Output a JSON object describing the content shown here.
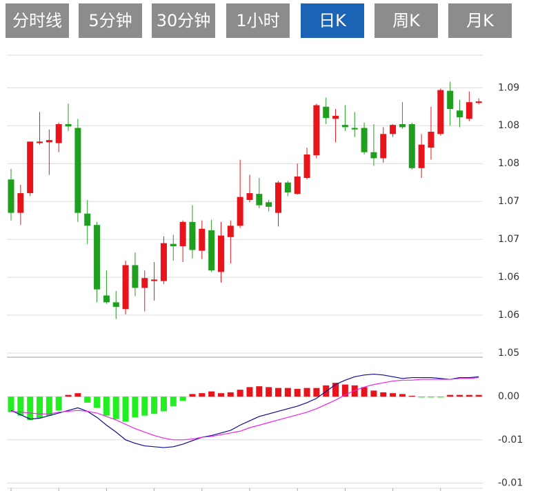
{
  "tabs": {
    "items": [
      "分时线",
      "5分钟",
      "30分钟",
      "1小时",
      "日K",
      "周K",
      "月K"
    ],
    "active": 4
  },
  "chart_data": [
    {
      "type": "candlestick",
      "up_color": "#e8141b",
      "down_color": "#1f9e1f",
      "grid": true,
      "ylim": [
        1.055,
        1.0943
      ],
      "yticks": [
        1.09,
        {
          "value": 1.085,
          "label": "1.08"
        },
        1.08,
        {
          "value": 1.075,
          "label": "1.07"
        },
        1.07,
        {
          "value": 1.065,
          "label": "1.06"
        },
        1.06,
        {
          "value": 1.055,
          "label": "1.05"
        }
      ],
      "open": [
        1.0779,
        1.0735,
        1.0761,
        1.0827,
        1.0828,
        1.0827,
        1.0852,
        1.0847,
        1.0734,
        1.0719,
        1.0626,
        1.0617,
        1.0608,
        1.0666,
        1.0636,
        1.0645,
        1.0645,
        1.0694,
        1.0691,
        1.0723,
        1.0685,
        1.0712,
        1.0657,
        1.0703,
        1.0718,
        1.0752,
        1.076,
        1.0749,
        1.0735,
        1.0775,
        1.076,
        1.0781,
        1.0811,
        1.0875,
        1.0859,
        1.0851,
        1.0847,
        1.0847,
        1.0815,
        1.0807,
        1.0839,
        1.0852,
        1.0852,
        1.0794,
        1.0821,
        1.0839,
        1.0896,
        1.087,
        1.0859,
        1.088
      ],
      "high": [
        1.0793,
        1.0772,
        1.0829,
        1.0868,
        1.0845,
        1.0854,
        1.0879,
        1.0859,
        1.0752,
        1.0723,
        1.0659,
        1.0632,
        1.0672,
        1.0683,
        1.0659,
        1.067,
        1.0704,
        1.0706,
        1.0725,
        1.0745,
        1.0725,
        1.0726,
        1.0723,
        1.0725,
        1.0805,
        1.0785,
        1.0781,
        1.0752,
        1.0777,
        1.0777,
        1.08,
        1.0821,
        1.0879,
        1.0887,
        1.0872,
        1.0877,
        1.0868,
        1.0854,
        1.0852,
        1.0848,
        1.0852,
        1.0881,
        1.0854,
        1.0839,
        1.0875,
        1.0899,
        1.0908,
        1.0884,
        1.0895,
        1.0886
      ],
      "low": [
        1.0725,
        1.0719,
        1.0757,
        1.0825,
        1.0785,
        1.0815,
        1.0843,
        1.0723,
        1.0694,
        1.0617,
        1.0615,
        1.0595,
        1.0601,
        1.0625,
        1.0605,
        1.0619,
        1.0641,
        1.0672,
        1.067,
        1.0675,
        1.0674,
        1.0657,
        1.0643,
        1.0668,
        1.0715,
        1.0749,
        1.0741,
        1.0737,
        1.0717,
        1.0757,
        1.0759,
        1.0779,
        1.0807,
        1.0852,
        1.0828,
        1.0843,
        1.0835,
        1.0812,
        1.0797,
        1.0801,
        1.0835,
        1.0846,
        1.0792,
        1.0781,
        1.0805,
        1.0837,
        1.085,
        1.0848,
        1.0856,
        1.0878
      ],
      "close": [
        1.0735,
        1.0761,
        1.0829,
        1.0829,
        1.0831,
        1.0852,
        1.0849,
        1.0735,
        1.0718,
        1.0634,
        1.0617,
        1.0611,
        1.0666,
        1.0636,
        1.0649,
        1.0647,
        1.0695,
        1.0691,
        1.0723,
        1.0686,
        1.0714,
        1.0659,
        1.0705,
        1.0718,
        1.0756,
        1.0761,
        1.0745,
        1.0743,
        1.0775,
        1.0762,
        1.0783,
        1.0812,
        1.0877,
        1.086,
        1.0863,
        1.0848,
        1.0845,
        1.0815,
        1.0807,
        1.0839,
        1.0851,
        1.0848,
        1.0794,
        1.0825,
        1.0842,
        1.0897,
        1.0872,
        1.0861,
        1.0881,
        1.0882
      ]
    },
    {
      "type": "macd",
      "grid": true,
      "ylim": [
        -0.011,
        0.0044
      ],
      "yticks": [
        {
          "value": 0,
          "label": "0.00"
        },
        {
          "value": -0.005,
          "label": "-0.01"
        },
        {
          "value": -0.01,
          "label": "-0.01"
        }
      ],
      "series": [
        {
          "type": "bar",
          "color": "#e8141b",
          "negative_color": "#22ee22",
          "values": [
            -0.0018,
            -0.0022,
            -0.0027,
            -0.0025,
            -0.0022,
            -0.0016,
            0.0002,
            0.0004,
            -0.0007,
            -0.0013,
            -0.0022,
            -0.0026,
            -0.0029,
            -0.0024,
            -0.0022,
            -0.002,
            -0.0017,
            -0.0011,
            -0.0005,
            0.0003,
            0.0004,
            0.0006,
            0.0004,
            0.0005,
            0.0008,
            0.0011,
            0.0012,
            0.0011,
            0.001,
            0.001,
            0.0009,
            0.001,
            0.001,
            0.0013,
            0.0016,
            0.0014,
            0.0013,
            0.0011,
            0.0007,
            0.0005,
            0.0004,
            0.0003,
            0.0001,
            -0.0001,
            -0.0001,
            -0.0001,
            0.0002,
            0.0002,
            0.0002,
            0.0002
          ]
        },
        {
          "type": "line",
          "color": "#0a0a96",
          "values": [
            -0.0016,
            -0.0021,
            -0.0026,
            -0.0025,
            -0.0022,
            -0.0019,
            -0.0016,
            -0.0013,
            -0.0017,
            -0.0024,
            -0.0033,
            -0.0041,
            -0.005,
            -0.0054,
            -0.0057,
            -0.0058,
            -0.0059,
            -0.0058,
            -0.0055,
            -0.0051,
            -0.0047,
            -0.0045,
            -0.0042,
            -0.0039,
            -0.0033,
            -0.0028,
            -0.0023,
            -0.002,
            -0.0017,
            -0.0014,
            -0.0011,
            -0.0007,
            -0.0002,
            0.0006,
            0.0014,
            0.0019,
            0.0023,
            0.0025,
            0.0026,
            0.0025,
            0.0023,
            0.0021,
            0.0022,
            0.0022,
            0.0022,
            0.0021,
            0.002,
            0.0022,
            0.0022,
            0.0023
          ]
        },
        {
          "type": "line",
          "color": "#ee22ee",
          "values": [
            -0.0017,
            -0.0018,
            -0.0019,
            -0.002,
            -0.002,
            -0.0018,
            -0.0017,
            -0.0016,
            -0.0017,
            -0.0019,
            -0.0023,
            -0.0027,
            -0.0032,
            -0.0037,
            -0.0041,
            -0.0045,
            -0.0048,
            -0.005,
            -0.005,
            -0.0049,
            -0.0047,
            -0.0046,
            -0.0044,
            -0.0042,
            -0.004,
            -0.0036,
            -0.0033,
            -0.003,
            -0.0027,
            -0.0024,
            -0.0021,
            -0.0018,
            -0.0014,
            -0.0009,
            -0.0004,
            0.0002,
            0.0007,
            0.0011,
            0.0014,
            0.0016,
            0.0018,
            0.0019,
            0.0019,
            0.002,
            0.002,
            0.002,
            0.002,
            0.0021,
            0.0021,
            0.0022
          ]
        }
      ]
    }
  ]
}
